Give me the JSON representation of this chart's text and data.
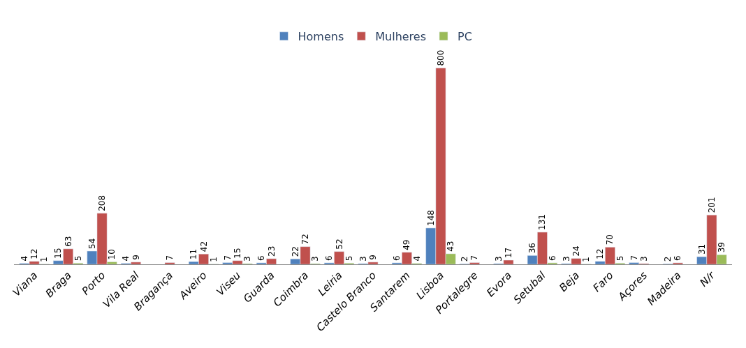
{
  "chart_data": {
    "type": "bar",
    "categories": [
      "Viana",
      "Braga",
      "Porto",
      "Vila Real",
      "Bragança",
      "Aveiro",
      "Viseu",
      "Guarda",
      "Coimbra",
      "Leiria",
      "Castelo Branco",
      "Santarem",
      "Lisboa",
      "Portalegre",
      "Evora",
      "Setubal",
      "Beja",
      "Faro",
      "Açores",
      "Madeira",
      "N/r"
    ],
    "series": [
      {
        "name": "Homens",
        "color": "#4f81bd",
        "values": [
          4,
          15,
          54,
          4,
          null,
          11,
          7,
          6,
          22,
          6,
          3,
          6,
          148,
          2,
          3,
          36,
          3,
          12,
          7,
          2,
          31
        ]
      },
      {
        "name": "Mulheres",
        "color": "#c0504d",
        "values": [
          12,
          63,
          208,
          9,
          7,
          42,
          15,
          23,
          72,
          52,
          9,
          49,
          800,
          7,
          17,
          131,
          24,
          70,
          3,
          6,
          201
        ]
      },
      {
        "name": "PC",
        "color": "#9bbb59",
        "values": [
          1,
          5,
          10,
          null,
          null,
          1,
          3,
          null,
          3,
          5,
          null,
          4,
          43,
          null,
          null,
          6,
          1,
          5,
          null,
          null,
          39
        ]
      }
    ],
    "data_labels": true,
    "legend": "top"
  }
}
